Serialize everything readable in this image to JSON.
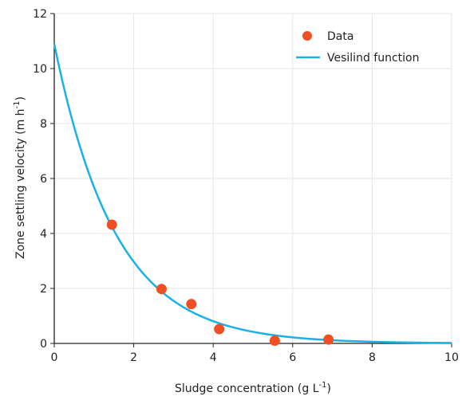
{
  "chart_data": {
    "type": "scatter",
    "xlabel_main": "Sludge concentration (g L",
    "xlabel_sup": "-1",
    "xlabel_end": ")",
    "ylabel_main": "Zone settling velocity (m h",
    "ylabel_sup": "-1",
    "ylabel_end": ")",
    "xlim": [
      0,
      10
    ],
    "ylim": [
      0,
      12
    ],
    "xticks": [
      0,
      2,
      4,
      6,
      8,
      10
    ],
    "yticks": [
      0,
      2,
      4,
      6,
      8,
      10,
      12
    ],
    "grid": true,
    "legend_position": "top-right",
    "series": [
      {
        "name": "Data",
        "kind": "scatter",
        "color": "#f04e23",
        "points": [
          {
            "x": 1.45,
            "y": 4.32
          },
          {
            "x": 2.7,
            "y": 1.98
          },
          {
            "x": 3.45,
            "y": 1.43
          },
          {
            "x": 4.15,
            "y": 0.52
          },
          {
            "x": 5.55,
            "y": 0.1
          },
          {
            "x": 6.9,
            "y": 0.14
          }
        ]
      },
      {
        "name": "Vesilind function",
        "kind": "line",
        "color": "#1bb1e7",
        "function": "v = 10.9 * exp(-0.65 * X)",
        "v0": 10.9,
        "k": 0.65
      }
    ]
  }
}
